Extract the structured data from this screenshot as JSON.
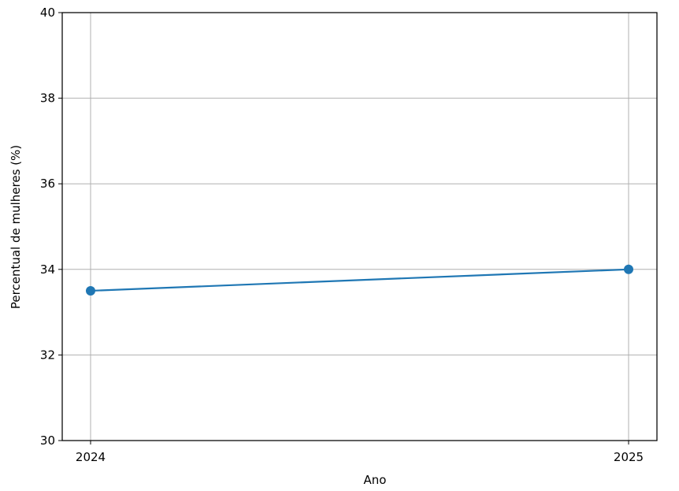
{
  "chart_data": {
    "type": "line",
    "title": "",
    "xlabel": "Ano",
    "ylabel": "Percentual de mulheres (%)",
    "x": [
      2024,
      2025
    ],
    "x_tick_labels": [
      "2024",
      "2025"
    ],
    "series": [
      {
        "values": [
          33.5,
          34.0
        ],
        "color": "#1f77b4",
        "marker": "circle"
      }
    ],
    "ylim": [
      30,
      40
    ],
    "y_ticks": [
      30,
      32,
      34,
      36,
      38,
      40
    ],
    "y_tick_labels": [
      "30",
      "32",
      "34",
      "36",
      "38",
      "40"
    ],
    "grid": true,
    "legend": "none"
  }
}
